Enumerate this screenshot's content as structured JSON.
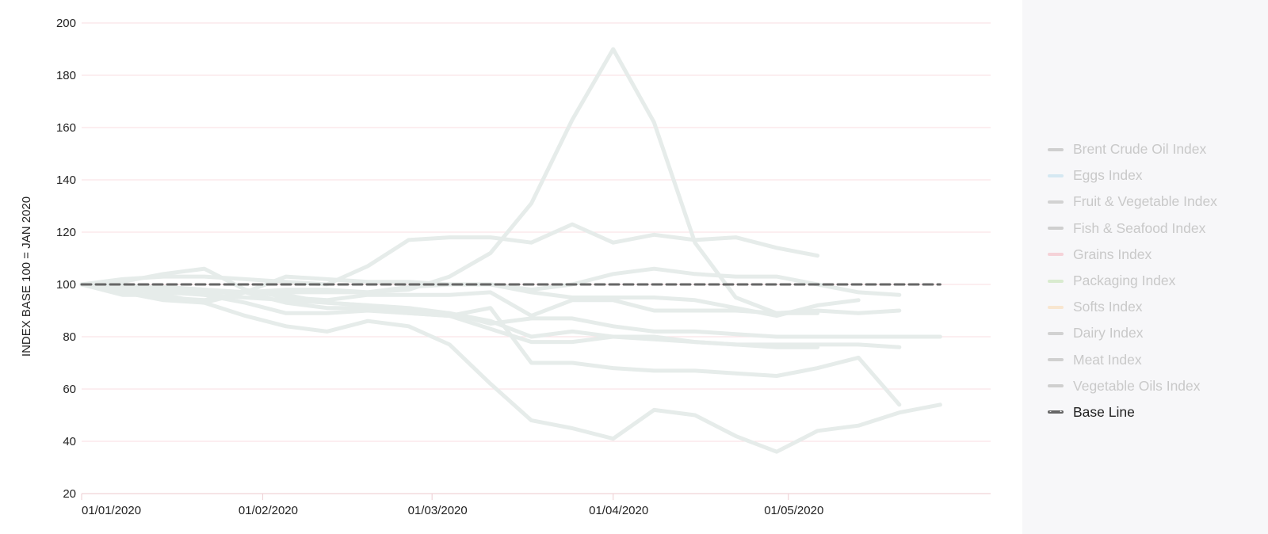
{
  "chart_data": {
    "type": "line",
    "ylabel": "INDEX BASE 100 = JAN 2020",
    "xlabel": "",
    "title": "",
    "ylim": [
      20,
      200
    ],
    "y_ticks": [
      "20",
      "40",
      "60",
      "80",
      "100",
      "120",
      "140",
      "160",
      "180",
      "200"
    ],
    "x_ticks": [
      "01/01/2020",
      "01/02/2020",
      "01/03/2020",
      "01/04/2020",
      "01/05/2020"
    ],
    "x_dates": [
      "2020-01-01",
      "2020-01-08",
      "2020-01-15",
      "2020-01-22",
      "2020-01-29",
      "2020-02-05",
      "2020-02-12",
      "2020-02-19",
      "2020-02-26",
      "2020-03-04",
      "2020-03-11",
      "2020-03-18",
      "2020-03-25",
      "2020-04-01",
      "2020-04-08",
      "2020-04-15",
      "2020-04-22",
      "2020-04-29",
      "2020-05-06",
      "2020-05-13",
      "2020-05-20",
      "2020-05-27"
    ],
    "grid": true,
    "legend_position": "right",
    "series": [
      {
        "name": "Brent Crude Oil Index",
        "color": "#e6ecea",
        "values": [
          100,
          97,
          94,
          93,
          97,
          93,
          91,
          91,
          89,
          88,
          83,
          78,
          78,
          80,
          80,
          78,
          77,
          76,
          76,
          null,
          null,
          null
        ]
      },
      {
        "name": "Eggs Index",
        "color": "#e6ecea",
        "values": [
          100,
          101,
          104,
          106,
          98,
          95,
          94,
          96,
          96,
          96,
          97,
          88,
          94,
          94,
          90,
          90,
          90,
          89,
          90,
          89,
          90,
          null
        ]
      },
      {
        "name": "Fruit & Vegetable Index",
        "color": "#e6ecea",
        "values": [
          100,
          100,
          98,
          97,
          97,
          96,
          93,
          92,
          91,
          89,
          86,
          80,
          82,
          80,
          79,
          78,
          77,
          77,
          77,
          77,
          76,
          null
        ]
      },
      {
        "name": "Fish & Seafood Index",
        "color": "#e6ecea",
        "values": [
          100,
          99,
          99,
          98,
          97,
          103,
          102,
          101,
          101,
          100,
          100,
          97,
          95,
          95,
          95,
          94,
          91,
          88,
          92,
          94,
          null,
          null
        ]
      },
      {
        "name": "Grains Index",
        "color": "#e6ecea",
        "values": [
          100,
          102,
          103,
          103,
          102,
          101,
          100,
          107,
          117,
          118,
          118,
          116,
          123,
          116,
          119,
          117,
          118,
          114,
          111,
          null,
          null,
          null
        ]
      },
      {
        "name": "Packaging Index",
        "color": "#e6ecea",
        "values": [
          100,
          98,
          97,
          96,
          95,
          94,
          93,
          92,
          90,
          89,
          85,
          87,
          87,
          84,
          82,
          82,
          81,
          80,
          80,
          80,
          80,
          80
        ]
      },
      {
        "name": "Softs Index",
        "color": "#e6ecea",
        "values": [
          100,
          96,
          96,
          93,
          88,
          84,
          82,
          86,
          84,
          77,
          62,
          48,
          45,
          41,
          52,
          50,
          42,
          36,
          44,
          46,
          51,
          54
        ]
      },
      {
        "name": "Dairy Index",
        "color": "#e6ecea",
        "values": [
          100,
          99,
          98,
          96,
          93,
          89,
          89,
          90,
          89,
          88,
          91,
          70,
          70,
          68,
          67,
          67,
          66,
          65,
          68,
          72,
          54,
          null
        ]
      },
      {
        "name": "Meat Index",
        "color": "#e6ecea",
        "values": [
          100,
          97,
          95,
          94,
          97,
          98,
          98,
          97,
          99,
          100,
          100,
          98,
          100,
          104,
          106,
          104,
          103,
          103,
          100,
          97,
          96,
          null
        ]
      },
      {
        "name": "Vegetable Oils Index",
        "color": "#e6ecea",
        "values": [
          100,
          99,
          99,
          98,
          97,
          97,
          97,
          97,
          98,
          103,
          112,
          131,
          163,
          190,
          162,
          116,
          95,
          89,
          89,
          null,
          null,
          null
        ]
      },
      {
        "name": "Base Line",
        "color": "#666666",
        "dashed": true,
        "values": [
          100,
          100,
          100,
          100,
          100,
          100,
          100,
          100,
          100,
          100,
          100,
          100,
          100,
          100,
          100,
          100,
          100,
          100,
          100,
          100,
          100,
          100
        ]
      }
    ]
  },
  "legend": {
    "items": [
      {
        "label": "Brent Crude Oil Index",
        "swatch": "#cfcfcf",
        "active": false
      },
      {
        "label": "Eggs Index",
        "swatch": "#d5e8f2",
        "active": false
      },
      {
        "label": "Fruit & Vegetable Index",
        "swatch": "#d2d2d2",
        "active": false
      },
      {
        "label": "Fish & Seafood Index",
        "swatch": "#cfcfcf",
        "active": false
      },
      {
        "label": "Grains Index",
        "swatch": "#f5d2d8",
        "active": false
      },
      {
        "label": "Packaging Index",
        "swatch": "#d9ebcf",
        "active": false
      },
      {
        "label": "Softs Index",
        "swatch": "#f8e6d0",
        "active": false
      },
      {
        "label": "Dairy Index",
        "swatch": "#d2d2d2",
        "active": false
      },
      {
        "label": "Meat Index",
        "swatch": "#d0d0d0",
        "active": false
      },
      {
        "label": "Vegetable Oils Index",
        "swatch": "#cfcfcf",
        "active": false
      },
      {
        "label": "Base Line",
        "swatch": "#666666",
        "active": true,
        "dashed": true
      }
    ]
  },
  "colors": {
    "gridline": "#fbe3e6",
    "axis": "#f0d4d8",
    "series_muted": "#e6ecea",
    "baseline": "#666666"
  }
}
